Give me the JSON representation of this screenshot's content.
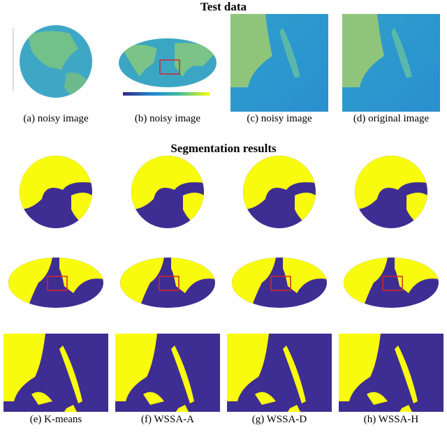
{
  "header": {
    "title": "Test data"
  },
  "test_panels": [
    {
      "caption": "(a) noisy image"
    },
    {
      "caption": "(b) noisy image"
    },
    {
      "caption": "(c) noisy image"
    },
    {
      "caption": "(d) original image"
    }
  ],
  "section": {
    "title": "Segmentation results"
  },
  "result_panels": [
    {
      "caption": "(e) K-means"
    },
    {
      "caption": "(f) WSSA-A"
    },
    {
      "caption": "(g) WSSA-D"
    },
    {
      "caption": "(h) WSSA-H"
    }
  ]
}
